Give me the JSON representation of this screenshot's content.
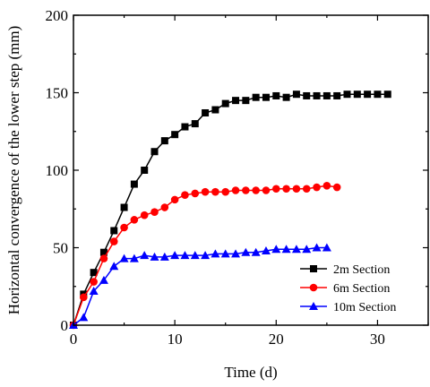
{
  "chart_data": {
    "type": "line",
    "title": "",
    "xlabel": "Time (d)",
    "ylabel": "Horizontal convergence of the lower step (mm)",
    "xlim": [
      0,
      35
    ],
    "ylim": [
      0,
      200
    ],
    "xticks": [
      "0",
      "10",
      "20",
      "30"
    ],
    "yticks": [
      "0",
      "50",
      "100",
      "150",
      "200"
    ],
    "grid": false,
    "legend_position": "lower-right",
    "series": [
      {
        "name": "2m Section",
        "color": "#000000",
        "marker": "square",
        "x": [
          0,
          1,
          2,
          3,
          4,
          5,
          6,
          7,
          8,
          9,
          10,
          11,
          12,
          13,
          14,
          15,
          16,
          17,
          18,
          19,
          20,
          21,
          22,
          23,
          24,
          25,
          26,
          27,
          28,
          29,
          30,
          31
        ],
        "y": [
          0,
          20,
          34,
          47,
          61,
          76,
          91,
          100,
          112,
          119,
          123,
          128,
          130,
          137,
          139,
          143,
          145,
          145,
          147,
          147,
          148,
          147,
          149,
          148,
          148,
          148,
          148,
          149,
          149,
          149,
          149,
          149
        ]
      },
      {
        "name": "6m Section",
        "color": "#ff0000",
        "marker": "circle",
        "x": [
          0,
          1,
          2,
          3,
          4,
          5,
          6,
          7,
          8,
          9,
          10,
          11,
          12,
          13,
          14,
          15,
          16,
          17,
          18,
          19,
          20,
          21,
          22,
          23,
          24,
          25,
          26
        ],
        "y": [
          0,
          18,
          28,
          43,
          54,
          63,
          68,
          71,
          73,
          76,
          81,
          84,
          85,
          86,
          86,
          86,
          87,
          87,
          87,
          87,
          88,
          88,
          88,
          88,
          89,
          90,
          89
        ]
      },
      {
        "name": "10m Section",
        "color": "#0000ff",
        "marker": "triangle",
        "x": [
          0,
          1,
          2,
          3,
          4,
          5,
          6,
          7,
          8,
          9,
          10,
          11,
          12,
          13,
          14,
          15,
          16,
          17,
          18,
          19,
          20,
          21,
          22,
          23,
          24,
          25
        ],
        "y": [
          0,
          5,
          22,
          29,
          38,
          43,
          43,
          45,
          44,
          44,
          45,
          45,
          45,
          45,
          46,
          46,
          46,
          47,
          47,
          48,
          49,
          49,
          49,
          49,
          50,
          50
        ]
      }
    ]
  }
}
